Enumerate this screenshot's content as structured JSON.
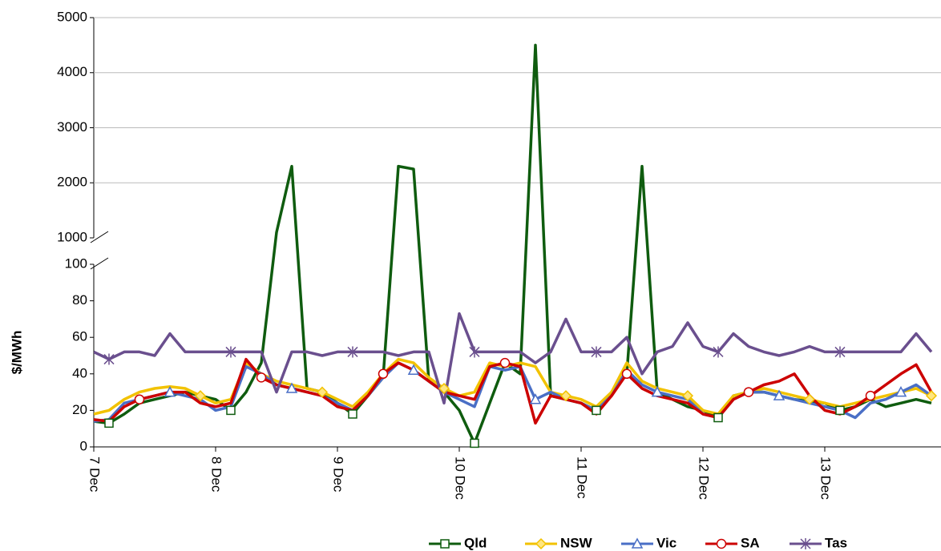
{
  "chart_data": {
    "type": "line",
    "y_label": "$/MWh",
    "x": [
      7,
      7.125,
      7.25,
      7.375,
      7.5,
      7.625,
      7.75,
      7.875,
      8,
      8.125,
      8.25,
      8.375,
      8.5,
      8.625,
      8.75,
      8.875,
      9,
      9.125,
      9.25,
      9.375,
      9.5,
      9.625,
      9.75,
      9.875,
      10,
      10.125,
      10.25,
      10.375,
      10.5,
      10.625,
      10.75,
      10.875,
      11,
      11.125,
      11.25,
      11.375,
      11.5,
      11.625,
      11.75,
      11.875,
      12,
      12.125,
      12.25,
      12.375,
      12.5,
      12.625,
      12.75,
      12.875,
      13,
      13.125,
      13.25,
      13.375,
      13.5,
      13.625,
      13.75,
      13.875
    ],
    "xlim": [
      7,
      13.954
    ],
    "xticks": [
      {
        "value": 7,
        "label": "7 Dec"
      },
      {
        "value": 8,
        "label": "8 Dec"
      },
      {
        "value": 9,
        "label": "9 Dec"
      },
      {
        "value": 10,
        "label": "10 Dec"
      },
      {
        "value": 11,
        "label": "11 Dec"
      },
      {
        "value": 12,
        "label": "12 Dec"
      },
      {
        "value": 13,
        "label": "13 Dec"
      }
    ],
    "ylim": [
      0,
      5000
    ],
    "axis_break": [
      100,
      1000
    ],
    "yticks": [
      0,
      20,
      40,
      60,
      80,
      100,
      1000,
      2000,
      3000,
      4000,
      5000
    ],
    "grid": true,
    "legend": "bottom",
    "series": [
      {
        "name": "Qld",
        "color": "#0f5c0f",
        "marker": "square",
        "values": [
          14,
          13,
          18,
          24,
          26,
          28,
          30,
          28,
          26,
          20,
          30,
          46,
          1100,
          2300,
          32,
          30,
          24,
          18,
          28,
          38,
          2300,
          2250,
          36,
          30,
          20,
          2,
          24,
          46,
          40,
          4500,
          28,
          26,
          24,
          20,
          30,
          40,
          2300,
          30,
          26,
          22,
          20,
          16,
          28,
          30,
          30,
          28,
          26,
          25,
          24,
          20,
          22,
          26,
          22,
          24,
          26,
          24
        ]
      },
      {
        "name": "NSW",
        "color": "#f2c200",
        "marker": "diamond",
        "values": [
          18,
          20,
          26,
          30,
          32,
          33,
          32,
          28,
          24,
          26,
          46,
          40,
          36,
          34,
          32,
          30,
          26,
          22,
          30,
          40,
          48,
          46,
          38,
          32,
          28,
          30,
          46,
          44,
          46,
          44,
          30,
          28,
          26,
          22,
          30,
          46,
          36,
          32,
          30,
          28,
          20,
          18,
          28,
          30,
          32,
          30,
          28,
          26,
          24,
          22,
          24,
          26,
          28,
          30,
          32,
          28
        ]
      },
      {
        "name": "Vic",
        "color": "#4a6fc6",
        "marker": "triangle",
        "values": [
          14,
          15,
          24,
          26,
          28,
          30,
          28,
          26,
          20,
          22,
          44,
          40,
          34,
          32,
          30,
          28,
          24,
          20,
          28,
          38,
          46,
          42,
          36,
          30,
          26,
          22,
          44,
          42,
          44,
          26,
          30,
          26,
          24,
          20,
          28,
          42,
          34,
          30,
          28,
          26,
          18,
          16,
          26,
          30,
          30,
          28,
          26,
          24,
          22,
          20,
          16,
          24,
          26,
          30,
          34,
          28
        ]
      },
      {
        "name": "SA",
        "color": "#cc0000",
        "marker": "circle",
        "values": [
          15,
          14,
          22,
          26,
          28,
          30,
          30,
          24,
          22,
          24,
          48,
          38,
          34,
          32,
          30,
          28,
          22,
          20,
          28,
          40,
          46,
          42,
          36,
          30,
          28,
          26,
          44,
          46,
          44,
          13,
          28,
          26,
          24,
          18,
          28,
          40,
          32,
          28,
          26,
          24,
          18,
          16,
          26,
          30,
          34,
          36,
          40,
          28,
          20,
          18,
          22,
          28,
          34,
          40,
          45,
          30
        ]
      },
      {
        "name": "Tas",
        "color": "#6a4f8e",
        "marker": "star",
        "values": [
          52,
          48,
          52,
          52,
          50,
          62,
          52,
          52,
          52,
          52,
          52,
          52,
          30,
          52,
          52,
          50,
          52,
          52,
          52,
          52,
          50,
          52,
          52,
          24,
          73,
          52,
          52,
          52,
          52,
          46,
          52,
          70,
          52,
          52,
          52,
          60,
          40,
          52,
          55,
          68,
          55,
          52,
          62,
          55,
          52,
          50,
          52,
          55,
          52,
          52,
          52,
          52,
          52,
          52,
          62,
          52
        ]
      }
    ]
  }
}
